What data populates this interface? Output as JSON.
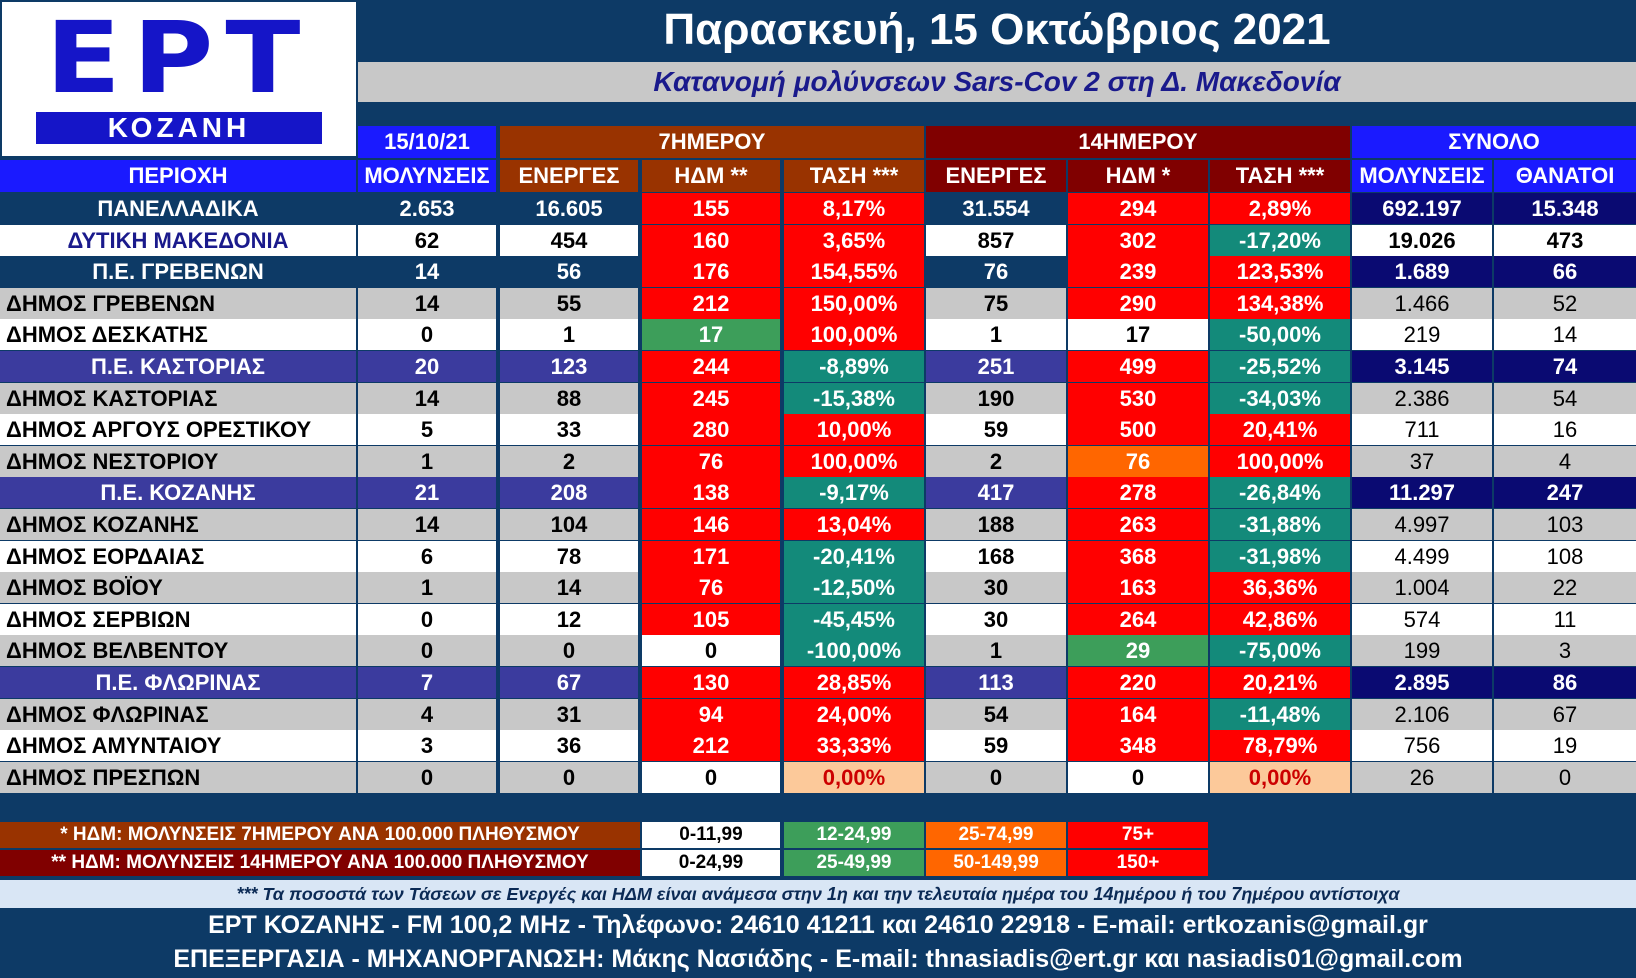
{
  "logo": {
    "main": "ΕΡΤ",
    "sub": "ΚΟΖΑΝΗ"
  },
  "header": {
    "date_title": "Παρασκευή, 15 Οκτώβριος 2021",
    "subtitle": "Κατανομή μολύνσεων Sars-Cov 2 στη Δ. Μακεδονία"
  },
  "groups": {
    "date": "15/10/21",
    "seven_day": "7ΗΜΕΡΟΥ",
    "fourteen_day": "14ΗΜΕΡΟΥ",
    "total": "ΣΥΝΟΛΟ"
  },
  "columns": [
    "ΠΕΡΙΟΧΗ",
    "ΜΟΛΥΝΣΕΙΣ",
    "ΕΝΕΡΓΕΣ",
    "ΗΔΜ **",
    "ΤΑΣΗ ***",
    "ΕΝΕΡΓΕΣ",
    "ΗΔΜ *",
    "ΤΑΣΗ ***",
    "ΜΟΛΥΝΣΕΙΣ",
    "ΘΑΝΑΤΟΙ"
  ],
  "rows": [
    {
      "kind": "national",
      "name": "ΠΑΝΕΛΛΑΔΙΚΑ",
      "cells": [
        "2.653",
        "16.605",
        "155",
        "8,17%",
        "31.554",
        "294",
        "2,89%",
        "692.197",
        "15.348"
      ],
      "colors": [
        "",
        "",
        "red",
        "red",
        "",
        "red",
        "red",
        "",
        ""
      ]
    },
    {
      "kind": "region",
      "name": "ΔΥΤΙΚΗ ΜΑΚΕΔΟΝΙΑ",
      "cells": [
        "62",
        "454",
        "160",
        "3,65%",
        "857",
        "302",
        "-17,20%",
        "19.026",
        "473"
      ],
      "colors": [
        "",
        "",
        "red",
        "red",
        "",
        "red",
        "teal",
        "",
        ""
      ]
    },
    {
      "kind": "pe-dark",
      "name": "Π.Ε. ΓΡΕΒΕΝΩΝ",
      "cells": [
        "14",
        "56",
        "176",
        "154,55%",
        "76",
        "239",
        "123,53%",
        "1.689",
        "66"
      ],
      "colors": [
        "",
        "",
        "red",
        "red",
        "",
        "red",
        "red",
        "",
        ""
      ]
    },
    {
      "kind": "muni-grey",
      "name": "ΔΗΜΟΣ ΓΡΕΒΕΝΩΝ",
      "cells": [
        "14",
        "55",
        "212",
        "150,00%",
        "75",
        "290",
        "134,38%",
        "1.466",
        "52"
      ],
      "colors": [
        "",
        "",
        "red",
        "red",
        "",
        "red",
        "red",
        "",
        ""
      ]
    },
    {
      "kind": "muni-white",
      "name": "ΔΗΜΟΣ ΔΕΣΚΑΤΗΣ",
      "cells": [
        "0",
        "1",
        "17",
        "100,00%",
        "1",
        "17",
        "-50,00%",
        "219",
        "14"
      ],
      "colors": [
        "",
        "",
        "green",
        "red",
        "",
        "white",
        "teal",
        "",
        ""
      ]
    },
    {
      "kind": "pe-purple",
      "name": "Π.Ε. ΚΑΣΤΟΡΙΑΣ",
      "cells": [
        "20",
        "123",
        "244",
        "-8,89%",
        "251",
        "499",
        "-25,52%",
        "3.145",
        "74"
      ],
      "colors": [
        "",
        "",
        "red",
        "teal",
        "",
        "red",
        "teal",
        "",
        ""
      ]
    },
    {
      "kind": "muni-grey",
      "name": "ΔΗΜΟΣ ΚΑΣΤΟΡΙΑΣ",
      "cells": [
        "14",
        "88",
        "245",
        "-15,38%",
        "190",
        "530",
        "-34,03%",
        "2.386",
        "54"
      ],
      "colors": [
        "",
        "",
        "red",
        "teal",
        "",
        "red",
        "teal",
        "",
        ""
      ]
    },
    {
      "kind": "muni-white",
      "name": "ΔΗΜΟΣ ΑΡΓΟΥΣ ΟΡΕΣΤΙΚΟΥ",
      "cells": [
        "5",
        "33",
        "280",
        "10,00%",
        "59",
        "500",
        "20,41%",
        "711",
        "16"
      ],
      "colors": [
        "",
        "",
        "red",
        "red",
        "",
        "red",
        "red",
        "",
        ""
      ]
    },
    {
      "kind": "muni-grey",
      "name": "ΔΗΜΟΣ ΝΕΣΤΟΡΙΟΥ",
      "cells": [
        "1",
        "2",
        "76",
        "100,00%",
        "2",
        "76",
        "100,00%",
        "37",
        "4"
      ],
      "colors": [
        "",
        "",
        "red",
        "red",
        "",
        "orange",
        "red",
        "",
        ""
      ]
    },
    {
      "kind": "pe-purple",
      "name": "Π.Ε. ΚΟΖΑΝΗΣ",
      "cells": [
        "21",
        "208",
        "138",
        "-9,17%",
        "417",
        "278",
        "-26,84%",
        "11.297",
        "247"
      ],
      "colors": [
        "",
        "",
        "red",
        "teal",
        "",
        "red",
        "teal",
        "",
        ""
      ]
    },
    {
      "kind": "muni-grey",
      "name": "ΔΗΜΟΣ ΚΟΖΑΝΗΣ",
      "cells": [
        "14",
        "104",
        "146",
        "13,04%",
        "188",
        "263",
        "-31,88%",
        "4.997",
        "103"
      ],
      "colors": [
        "",
        "",
        "red",
        "red",
        "",
        "red",
        "teal",
        "",
        ""
      ]
    },
    {
      "kind": "muni-white",
      "name": "ΔΗΜΟΣ ΕΟΡΔΑΙΑΣ",
      "cells": [
        "6",
        "78",
        "171",
        "-20,41%",
        "168",
        "368",
        "-31,98%",
        "4.499",
        "108"
      ],
      "colors": [
        "",
        "",
        "red",
        "teal",
        "",
        "red",
        "teal",
        "",
        ""
      ]
    },
    {
      "kind": "muni-grey",
      "name": "ΔΗΜΟΣ ΒΟΪΟΥ",
      "cells": [
        "1",
        "14",
        "76",
        "-12,50%",
        "30",
        "163",
        "36,36%",
        "1.004",
        "22"
      ],
      "colors": [
        "",
        "",
        "red",
        "teal",
        "",
        "red",
        "red",
        "",
        ""
      ]
    },
    {
      "kind": "muni-white",
      "name": "ΔΗΜΟΣ ΣΕΡΒΙΩΝ",
      "cells": [
        "0",
        "12",
        "105",
        "-45,45%",
        "30",
        "264",
        "42,86%",
        "574",
        "11"
      ],
      "colors": [
        "",
        "",
        "red",
        "teal",
        "",
        "red",
        "red",
        "",
        ""
      ]
    },
    {
      "kind": "muni-grey",
      "name": "ΔΗΜΟΣ ΒΕΛΒΕΝΤΟΥ",
      "cells": [
        "0",
        "0",
        "0",
        "-100,00%",
        "1",
        "29",
        "-75,00%",
        "199",
        "3"
      ],
      "colors": [
        "",
        "",
        "white",
        "teal",
        "",
        "green",
        "teal",
        "",
        ""
      ]
    },
    {
      "kind": "pe-purple",
      "name": "Π.Ε. ΦΛΩΡΙΝΑΣ",
      "cells": [
        "7",
        "67",
        "130",
        "28,85%",
        "113",
        "220",
        "20,21%",
        "2.895",
        "86"
      ],
      "colors": [
        "",
        "",
        "red",
        "red",
        "",
        "red",
        "red",
        "",
        ""
      ]
    },
    {
      "kind": "muni-grey",
      "name": "ΔΗΜΟΣ ΦΛΩΡΙΝΑΣ",
      "cells": [
        "4",
        "31",
        "94",
        "24,00%",
        "54",
        "164",
        "-11,48%",
        "2.106",
        "67"
      ],
      "colors": [
        "",
        "",
        "red",
        "red",
        "",
        "red",
        "teal",
        "",
        ""
      ]
    },
    {
      "kind": "muni-white",
      "name": "ΔΗΜΟΣ ΑΜΥΝΤΑΙΟΥ",
      "cells": [
        "3",
        "36",
        "212",
        "33,33%",
        "59",
        "348",
        "78,79%",
        "756",
        "19"
      ],
      "colors": [
        "",
        "",
        "red",
        "red",
        "",
        "red",
        "red",
        "",
        ""
      ]
    },
    {
      "kind": "muni-grey",
      "name": "ΔΗΜΟΣ ΠΡΕΣΠΩΝ",
      "cells": [
        "0",
        "0",
        "0",
        "0,00%",
        "0",
        "0",
        "0,00%",
        "26",
        "0"
      ],
      "colors": [
        "",
        "",
        "white",
        "peach",
        "",
        "white",
        "peach",
        "",
        ""
      ]
    }
  ],
  "legend": {
    "line1": {
      "label": "* ΗΔΜ: ΜΟΛΥΝΣΕΙΣ 7ΗΜΕΡΟΥ ΑΝΑ 100.000 ΠΛΗΘΥΣΜΟΥ",
      "ranges": [
        "0-11,99",
        "12-24,99",
        "25-74,99",
        "75+"
      ]
    },
    "line2": {
      "label": "** ΗΔΜ: ΜΟΛΥΝΣΕΙΣ 14ΗΜΕΡΟΥ ΑΝΑ 100.000 ΠΛΗΘΥΣΜΟΥ",
      "ranges": [
        "0-24,99",
        "25-49,99",
        "50-149,99",
        "150+"
      ]
    }
  },
  "note": "*** Τα ποσοστά των Τάσεων σε Ενεργές και ΗΔΜ είναι ανάμεσα στην 1η και την τελευταία ημέρα του 14ημέρου ή του 7ημέρου αντίστοιχα",
  "footer": {
    "line1": "ΕΡΤ ΚΟΖΑΝΗΣ - FM 100,2 MHz - Τηλέφωνο:  24610 41211 και 24610 22918 - E-mail: ertkozanis@gmail.gr",
    "line2": "ΕΠΕΞΕΡΓΑΣΙΑ  -  ΜΗΧΑΝΟΡΓΑΝΩΣΗ: Μάκης Νασιάδης  -   E-mail: thnasiadis@ert.gr και nasiadis01@gmail.com"
  },
  "palette": {
    "red": "#ff0000",
    "teal": "#138a7a",
    "green": "#3d9e5a",
    "orange": "#ff6600",
    "white": "#ffffff",
    "peach": "#fcc99a",
    "navy": "#0d3a66",
    "blue_header": "#1a1aff",
    "brown": "#993300",
    "maroon": "#800000",
    "purple": "#3b3b9e",
    "dark_blue": "#0a0a72",
    "grey": "#c8c8c8"
  }
}
